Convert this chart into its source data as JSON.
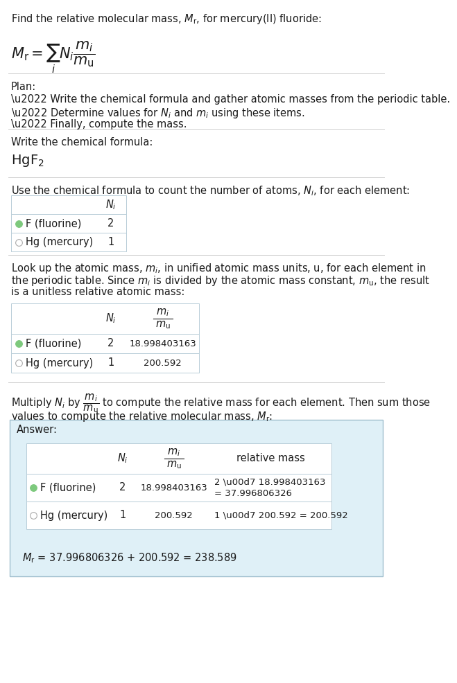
{
  "bg_color": "#ffffff",
  "answer_bg": "#dff0f7",
  "table_border": "#b8cdd8",
  "answer_border": "#a0bece",
  "green_dot": "#7dc97d",
  "gray_dot": "#aaaaaa",
  "text_color": "#1a1a1a",
  "font_size": 10.5,
  "small_font": 9.5,
  "sep_color": "#cccccc",
  "title": "Find the relative molecular mass, $M_{\\rm r}$, for mercury(II) fluoride:",
  "plan_label": "Plan:",
  "plan_lines": [
    "\\u2022 Write the chemical formula and gather atomic masses from the periodic table.",
    "\\u2022 Determine values for $N_i$ and $m_i$ using these items.",
    "\\u2022 Finally, compute the mass."
  ],
  "formula_label": "Write the chemical formula:",
  "formula": "HgF$_2$",
  "table1_label": "Use the chemical formula to count the number of atoms, $N_i$, for each element:",
  "table2_label_parts": [
    "Look up the atomic mass, $m_i$, in unified atomic mass units, u, for each element in",
    "the periodic table. Since $m_i$ is divided by the atomic mass constant, $m_{\\rm u}$, the result",
    "is a unitless relative atomic mass:"
  ],
  "multiply_label_parts": [
    "Multiply $N_i$ by $\\dfrac{m_i}{m_{\\rm u}}$ to compute the relative mass for each element. Then sum those",
    "values to compute the relative molecular mass, $M_{\\rm r}$:"
  ],
  "answer_label": "Answer:",
  "elements": [
    "F (fluorine)",
    "Hg (mercury)"
  ],
  "N_i": [
    2,
    1
  ],
  "m_i": [
    "18.998403163",
    "200.592"
  ],
  "rel_mass_line1": [
    "2 \\u00d7 18.998403163",
    "1 \\u00d7 200.592 = 200.592"
  ],
  "rel_mass_line2": [
    "= 37.996806326",
    ""
  ],
  "final_eq": "$M_{\\rm r}$ = 37.996806326 + 200.592 = 238.589",
  "dot_colors": [
    "#7dc97d",
    "#aaaaaa"
  ],
  "dot_filled": [
    true,
    false
  ]
}
